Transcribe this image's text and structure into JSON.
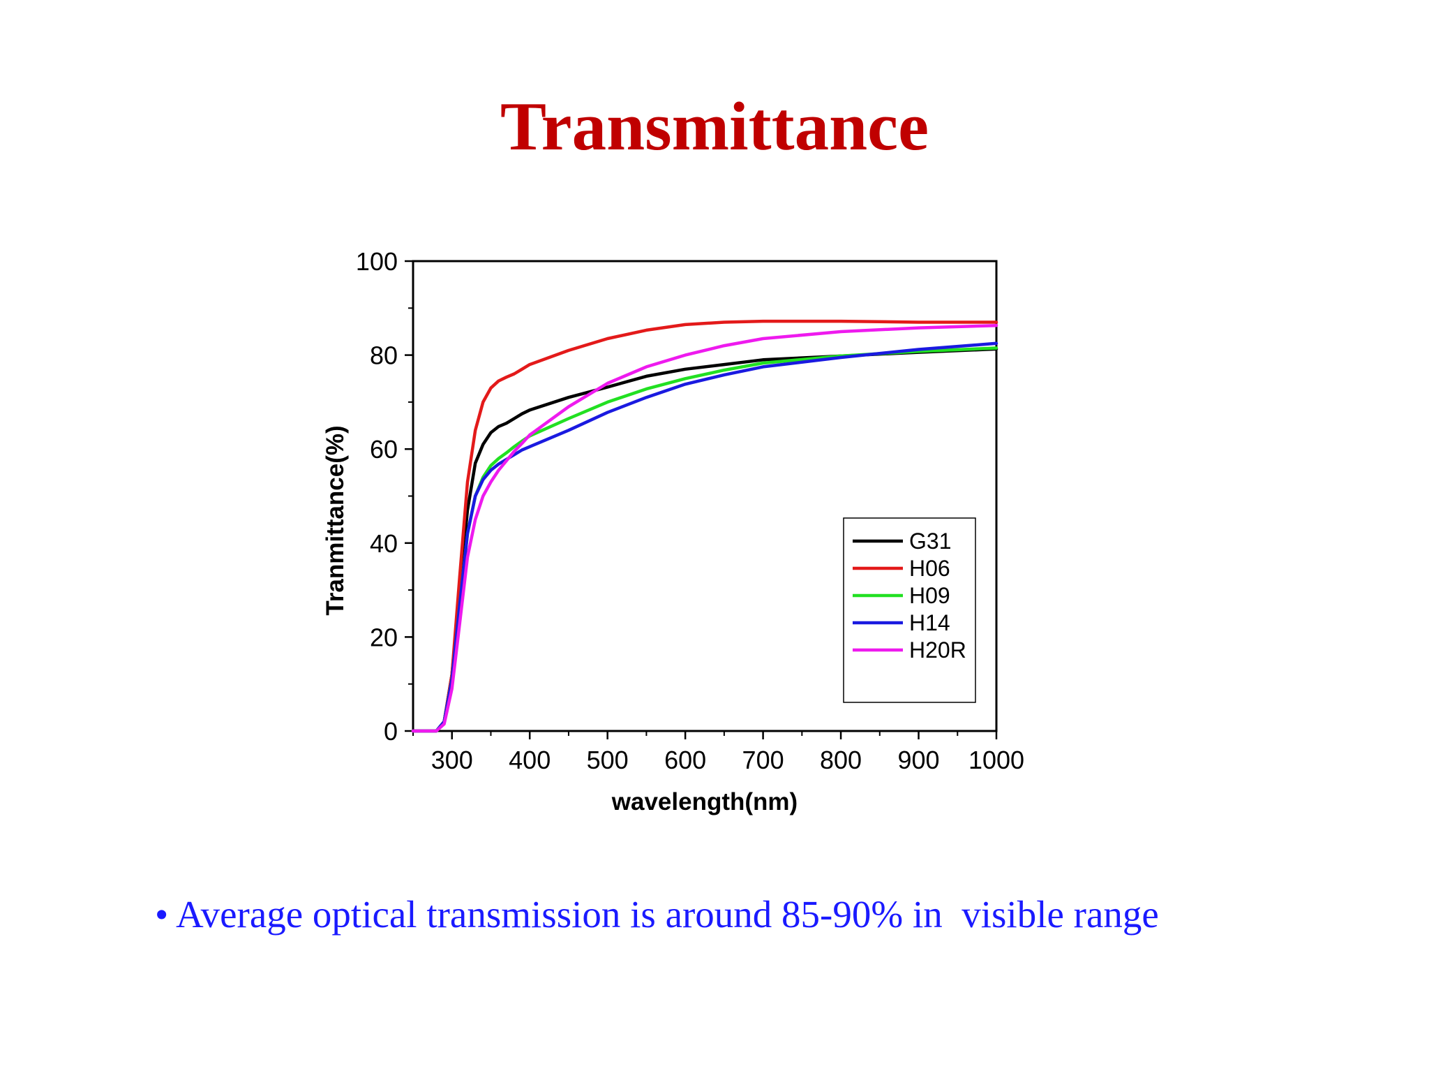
{
  "slide": {
    "title": "Transmittance",
    "bullet_mark": "•",
    "bullet_text": "Average optical transmission is around 85-90% in  visible range"
  },
  "colors": {
    "title": "#c00000",
    "bullet": "#1a1aff"
  },
  "chart_data": {
    "type": "line",
    "title": "",
    "xlabel": "wavelength(nm)",
    "ylabel": "Tranmittance(%)",
    "xlim": [
      250,
      1000
    ],
    "ylim": [
      0,
      100
    ],
    "xticks": [
      300,
      400,
      500,
      600,
      700,
      800,
      900,
      1000
    ],
    "yticks": [
      0,
      20,
      40,
      60,
      80,
      100
    ],
    "grid": false,
    "legend_position": "lower-right",
    "series": [
      {
        "name": "G31",
        "color": "#000000",
        "x": [
          250,
          280,
          290,
          300,
          310,
          320,
          330,
          340,
          350,
          360,
          370,
          380,
          390,
          400,
          450,
          500,
          550,
          600,
          650,
          700,
          800,
          900,
          1000
        ],
        "y": [
          0,
          0,
          2,
          12,
          30,
          47,
          57,
          61,
          63.5,
          64.8,
          65.5,
          66.5,
          67.5,
          68.3,
          71,
          73.2,
          75.5,
          77,
          78,
          79,
          79.8,
          80.6,
          81.3
        ]
      },
      {
        "name": "H06",
        "color": "#e31a1a",
        "x": [
          250,
          280,
          290,
          300,
          310,
          320,
          330,
          340,
          350,
          360,
          370,
          380,
          390,
          400,
          450,
          500,
          550,
          600,
          650,
          700,
          800,
          900,
          1000
        ],
        "y": [
          0,
          0,
          2,
          12,
          33,
          53,
          64,
          70,
          73,
          74.5,
          75.3,
          76,
          77,
          78,
          81,
          83.5,
          85.3,
          86.5,
          87,
          87.2,
          87.2,
          87,
          87
        ]
      },
      {
        "name": "H09",
        "color": "#22e022",
        "x": [
          250,
          280,
          290,
          300,
          310,
          320,
          330,
          340,
          350,
          360,
          370,
          380,
          390,
          400,
          450,
          500,
          550,
          600,
          650,
          700,
          800,
          900,
          1000
        ],
        "y": [
          0,
          0,
          2,
          11,
          27,
          42,
          50,
          54,
          56.5,
          58,
          59.2,
          60.5,
          61.7,
          62.8,
          66.5,
          70,
          72.8,
          75,
          76.8,
          78.3,
          79.8,
          80.8,
          81.5
        ]
      },
      {
        "name": "H14",
        "color": "#1a1ae0",
        "x": [
          250,
          280,
          290,
          300,
          310,
          320,
          330,
          340,
          350,
          360,
          370,
          380,
          390,
          400,
          450,
          500,
          550,
          600,
          650,
          700,
          800,
          900,
          1000
        ],
        "y": [
          0,
          0,
          2,
          11,
          27,
          42,
          50,
          53.5,
          55.5,
          56.8,
          57.8,
          58.8,
          59.8,
          60.5,
          64,
          67.8,
          71,
          73.8,
          75.8,
          77.5,
          79.5,
          81.2,
          82.5
        ]
      },
      {
        "name": "H20R",
        "color": "#ee1aee",
        "x": [
          250,
          280,
          290,
          300,
          310,
          320,
          330,
          340,
          350,
          360,
          370,
          380,
          390,
          400,
          450,
          500,
          550,
          600,
          650,
          700,
          800,
          900,
          1000
        ],
        "y": [
          0,
          0,
          1.5,
          9,
          23,
          37,
          45,
          50,
          53,
          55.5,
          57.5,
          59.5,
          61.2,
          63,
          69,
          74,
          77.5,
          80,
          82,
          83.5,
          85,
          85.8,
          86.3
        ]
      }
    ]
  }
}
